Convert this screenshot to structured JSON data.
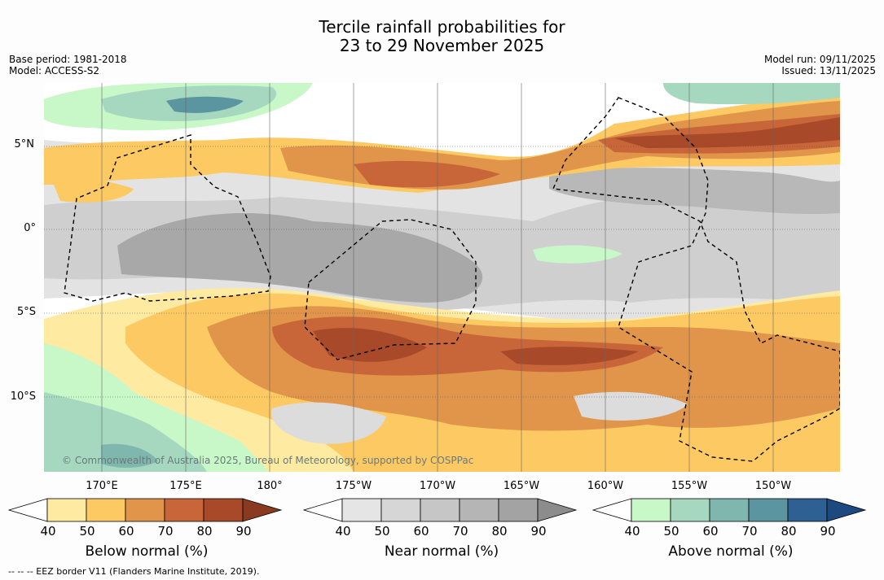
{
  "title": {
    "line1": "Tercile rainfall probabilities for",
    "line2": "23 to 29 November 2025"
  },
  "meta": {
    "base_period": "Base period: 1981-2018",
    "model": "Model: ACCESS-S2",
    "model_run": "Model run: 09/11/2025",
    "issued": "Issued: 13/11/2025"
  },
  "map": {
    "copyright": "© Commonwealth of Australia 2025, Bureau of Meteorology, supported by COSPPac",
    "lat_labels": [
      "5°N",
      "0°",
      "5°S",
      "10°S"
    ],
    "lon_labels": [
      "170°E",
      "175°E",
      "180°",
      "175°W",
      "170°W",
      "165°W",
      "160°W",
      "155°W",
      "150°W"
    ]
  },
  "legend": {
    "below": {
      "title": "Below normal (%)",
      "ticks": [
        "40",
        "50",
        "60",
        "70",
        "80",
        "90"
      ],
      "colors": [
        "#ffffff",
        "#feeaa0",
        "#fcc963",
        "#e0954a",
        "#c8663a",
        "#a84a2a",
        "#8a3a20"
      ]
    },
    "near": {
      "title": "Near normal (%)",
      "ticks": [
        "40",
        "50",
        "60",
        "70",
        "80",
        "90"
      ],
      "colors": [
        "#ffffff",
        "#e5e5e5",
        "#d6d6d6",
        "#c6c6c6",
        "#b5b5b5",
        "#a3a3a3",
        "#8c8c8c"
      ]
    },
    "above": {
      "title": "Above normal (%)",
      "ticks": [
        "40",
        "50",
        "60",
        "70",
        "80",
        "90"
      ],
      "colors": [
        "#ffffff",
        "#c8f7c8",
        "#a6d8c0",
        "#7fb6ad",
        "#5a95a0",
        "#2e6093",
        "#1c4a80"
      ]
    }
  },
  "eez_note": "--  --  -- EEZ border V11 (Flanders Marine Institute, 2019)."
}
